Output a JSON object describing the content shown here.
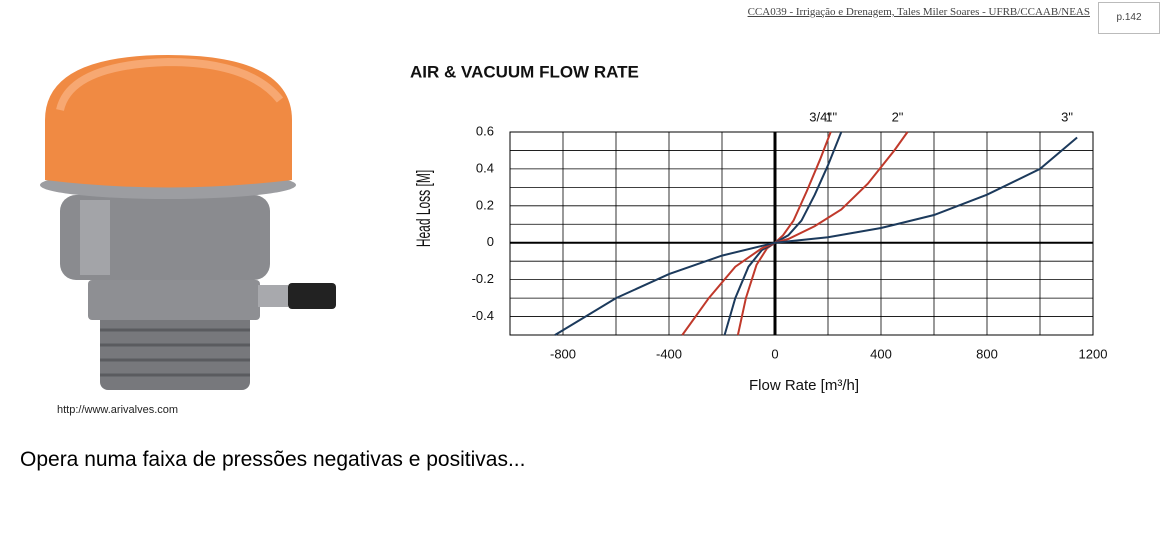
{
  "header": {
    "course": "CCA039 - Irrigação e Drenagem, Tales Miler Soares - UFRB/CCAAB/NEAS",
    "page": "p.142"
  },
  "caption": "http://www.arivalves.com",
  "text": "Opera numa faixa de pressões negativas e positivas...",
  "chart_data": {
    "type": "line",
    "title": "AIR & VACUUM FLOW RATE",
    "x_label": "Flow Rate [m³/h]",
    "y_label": "Head Loss [M]",
    "xlim": [
      -1000,
      1200
    ],
    "ylim": [
      -0.5,
      0.6
    ],
    "xticks": [
      -800,
      -400,
      0,
      400,
      800,
      1200
    ],
    "yticks": [
      -0.4,
      -0.2,
      0,
      0.2,
      0.4,
      0.6
    ],
    "xminor": [
      -1000,
      -600,
      -200,
      200,
      600,
      1000
    ],
    "yminor": [
      -0.3,
      -0.1,
      0.1,
      0.3,
      0.5
    ],
    "grid": true,
    "series": [
      {
        "name": "3/4\"",
        "color": "#c0392b",
        "x": [
          -140,
          -110,
          -70,
          -30,
          0,
          30,
          70,
          120,
          170,
          210
        ],
        "values": [
          -0.5,
          -0.3,
          -0.12,
          -0.03,
          0,
          0.04,
          0.12,
          0.28,
          0.45,
          0.6
        ]
      },
      {
        "name": "1\"",
        "color": "#1c3a5c",
        "x": [
          -190,
          -150,
          -100,
          -50,
          0,
          50,
          100,
          150,
          200,
          250
        ],
        "values": [
          -0.5,
          -0.3,
          -0.13,
          -0.04,
          0,
          0.04,
          0.12,
          0.26,
          0.42,
          0.6
        ]
      },
      {
        "name": "2\"",
        "color": "#c0392b",
        "x": [
          -350,
          -250,
          -150,
          -50,
          0,
          50,
          150,
          250,
          350,
          450,
          500
        ],
        "values": [
          -0.5,
          -0.3,
          -0.13,
          -0.03,
          0,
          0.02,
          0.09,
          0.18,
          0.32,
          0.5,
          0.6
        ]
      },
      {
        "name": "3\"",
        "color": "#1c3a5c",
        "x": [
          -830,
          -600,
          -400,
          -200,
          0,
          200,
          400,
          600,
          800,
          1000,
          1140
        ],
        "values": [
          -0.5,
          -0.3,
          -0.17,
          -0.07,
          0,
          0.03,
          0.08,
          0.15,
          0.26,
          0.4,
          0.57
        ]
      }
    ]
  }
}
